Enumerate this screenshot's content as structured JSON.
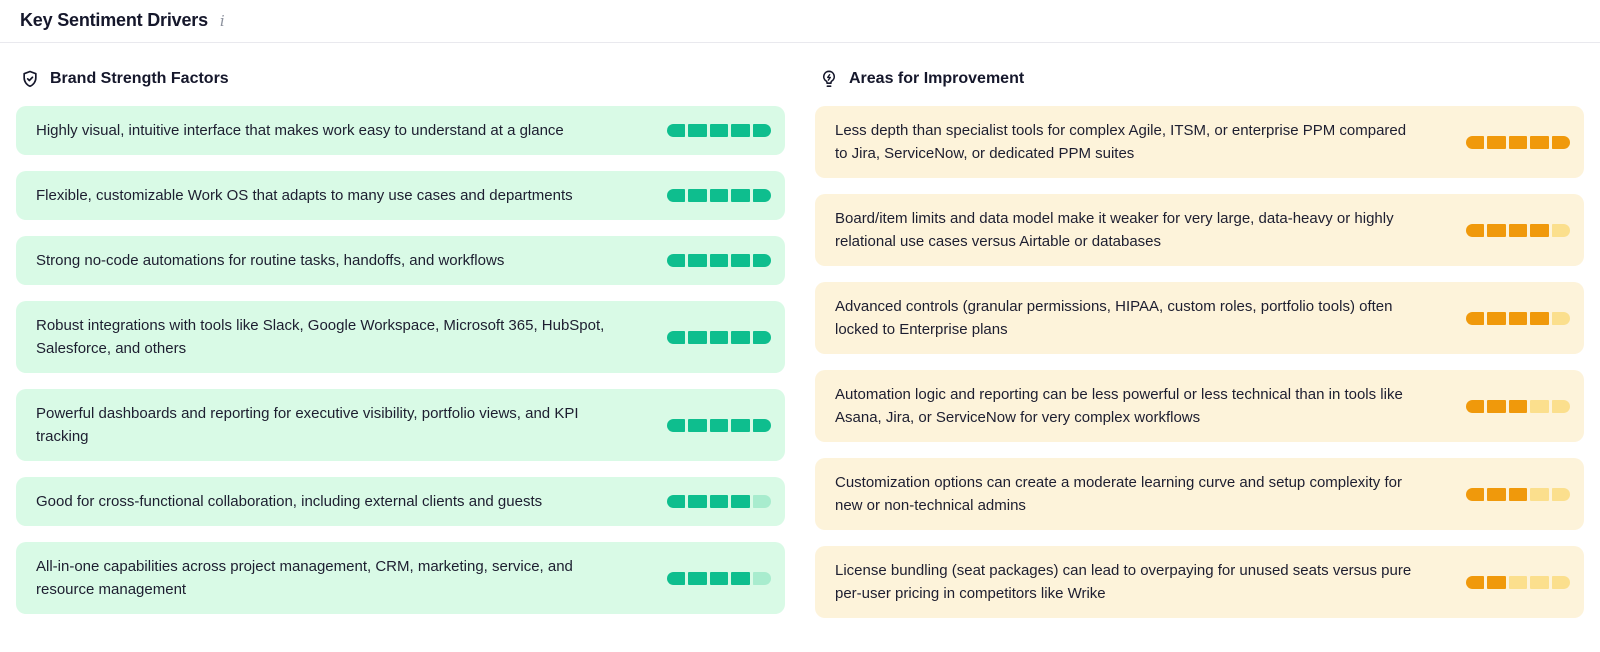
{
  "page": {
    "title": "Key Sentiment Drivers",
    "info_glyph": "i"
  },
  "meter": {
    "max": 5
  },
  "columns": [
    {
      "id": "brand-strengths",
      "title": "Brand Strength Factors",
      "icon": "shield-check-icon",
      "card_bg": "#d9fae6",
      "fill_color": "#0ebe8e",
      "empty_color": "#a8ecce",
      "items": [
        {
          "text": "Highly visual, intuitive interface that makes work easy to understand at a glance",
          "score": 5
        },
        {
          "text": "Flexible, customizable Work OS that adapts to many use cases and departments",
          "score": 5
        },
        {
          "text": "Strong no-code automations for routine tasks, handoffs, and workflows",
          "score": 5
        },
        {
          "text": "Robust integrations with tools like Slack, Google Workspace, Microsoft 365, HubSpot, Salesforce, and others",
          "score": 5
        },
        {
          "text": "Powerful dashboards and reporting for executive visibility, portfolio views, and KPI tracking",
          "score": 5
        },
        {
          "text": "Good for cross-functional collaboration, including external clients and guests",
          "score": 4
        },
        {
          "text": "All-in-one capabilities across project management, CRM, marketing, service, and resource management",
          "score": 4
        }
      ]
    },
    {
      "id": "areas-improvement",
      "title": "Areas for Improvement",
      "icon": "lightbulb-icon",
      "card_bg": "#fdf3da",
      "fill_color": "#f0990b",
      "empty_color": "#fbdf8d",
      "items": [
        {
          "text": "Less depth than specialist tools for complex Agile, ITSM, or enterprise PPM compared to Jira, ServiceNow, or dedicated PPM suites",
          "score": 5
        },
        {
          "text": "Board/item limits and data model make it weaker for very large, data-heavy or highly relational use cases versus Airtable or databases",
          "score": 4
        },
        {
          "text": "Advanced controls (granular permissions, HIPAA, custom roles, portfolio tools) often locked to Enterprise plans",
          "score": 4
        },
        {
          "text": "Automation logic and reporting can be less powerful or less technical than in tools like Asana, Jira, or ServiceNow for very complex workflows",
          "score": 3
        },
        {
          "text": "Customization options can create a moderate learning curve and setup complexity for new or non-technical admins",
          "score": 3
        },
        {
          "text": "License bundling (seat packages) can lead to overpaying for unused seats versus pure per-user pricing in competitors like Wrike",
          "score": 2
        }
      ]
    }
  ]
}
